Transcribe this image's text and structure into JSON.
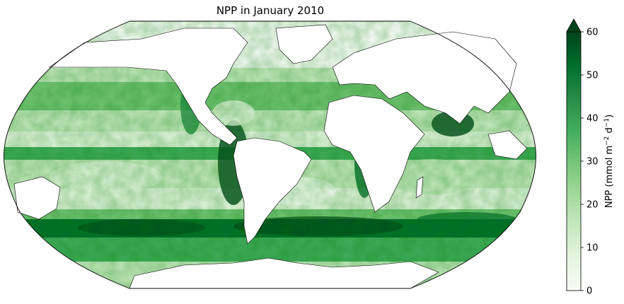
{
  "title": "NPP in January 2010",
  "colorbar": {
    "label_main": "NPP (mmol m",
    "label_sup1": "−2",
    "label_mid": " d",
    "label_sup2": "−1",
    "label_end": ")",
    "ticks": [
      "0",
      "10",
      "20",
      "30",
      "40",
      "50",
      "60"
    ],
    "min": 0,
    "max": 60,
    "extend": "max",
    "colormap": "Greens",
    "colors": [
      "#f7fcf5",
      "#e5f5e0",
      "#c7e9c0",
      "#a1d99b",
      "#74c476",
      "#41ab5d",
      "#238b45",
      "#006d2c",
      "#00441b"
    ]
  },
  "map": {
    "projection": "Robinson",
    "land_color": "#ffffff",
    "coastline_color": "#000000"
  }
}
